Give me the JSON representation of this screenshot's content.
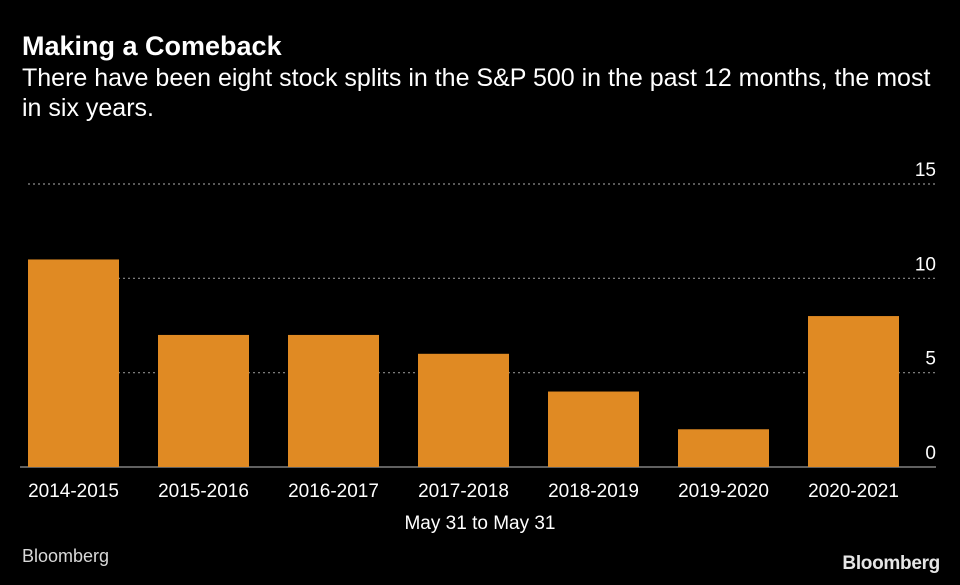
{
  "title": "Making a Comeback",
  "subtitle": "There have been eight stock splits in the S&P 500 in the past 12 months, the most in six years.",
  "source": "Bloomberg",
  "logo": "Bloomberg",
  "colors": {
    "background": "#000000",
    "bar": "#e08a23",
    "text": "#ffffff",
    "grid": "#8c8c8c"
  },
  "chart_data": {
    "type": "bar",
    "title": "Making a Comeback",
    "subtitle": "There have been eight stock splits in the S&P 500 in the past 12 months, the most in six years.",
    "xlabel": "May 31 to May 31",
    "ylabel": "",
    "categories": [
      "2014-2015",
      "2015-2016",
      "2016-2017",
      "2017-2018",
      "2018-2019",
      "2019-2020",
      "2020-2021"
    ],
    "values": [
      11,
      7,
      7,
      6,
      4,
      2,
      8
    ],
    "ylim": [
      0,
      15
    ],
    "yticks": [
      0,
      5,
      10,
      15
    ],
    "grid": true,
    "y_axis_position": "right"
  }
}
